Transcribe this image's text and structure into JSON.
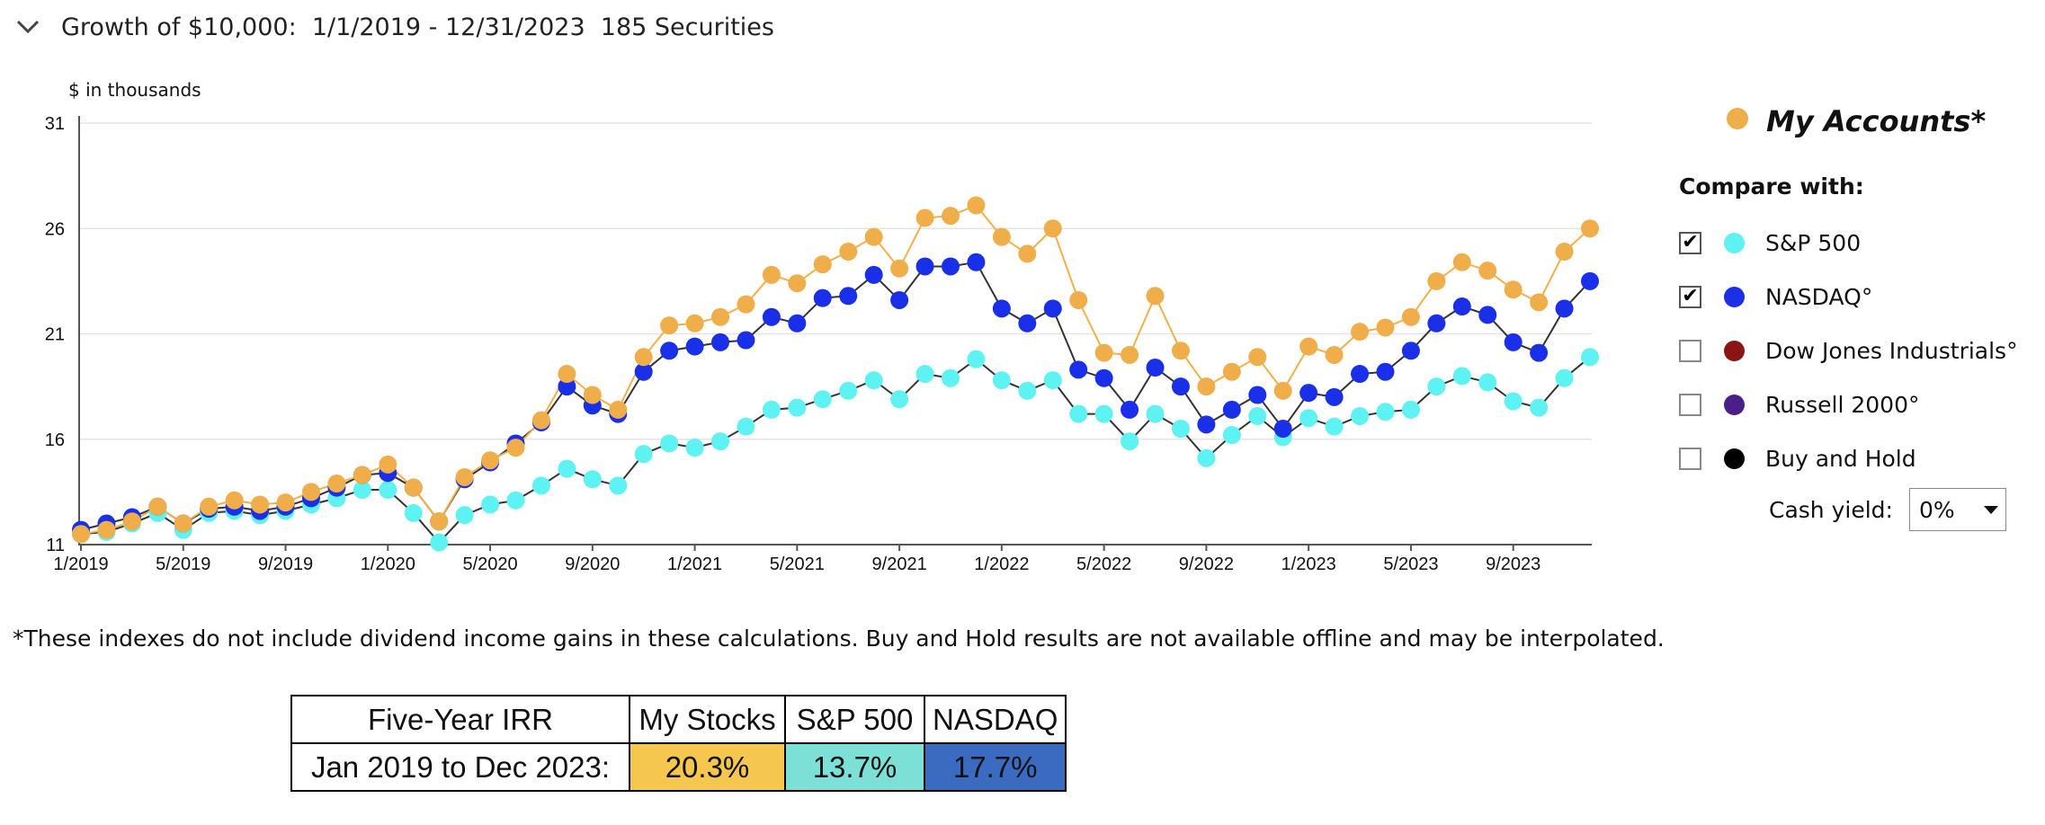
{
  "header": {
    "chevron_icon": "chevron-down-icon",
    "title": "Growth of $10,000:  1/1/2019 - 12/31/2023  185 Securities"
  },
  "chart_data": {
    "type": "line",
    "ylabel": "$ in thousands",
    "ylim": [
      11,
      31
    ],
    "yticks": [
      "11",
      "16",
      "21",
      "26",
      "31"
    ],
    "xticks": [
      "1/2019",
      "5/2019",
      "9/2019",
      "1/2020",
      "5/2020",
      "9/2020",
      "1/2021",
      "5/2021",
      "9/2021",
      "1/2022",
      "5/2022",
      "9/2022",
      "1/2023",
      "5/2023",
      "9/2023"
    ],
    "grid": "horizontal",
    "legend_position": "right",
    "x": [
      "1/2019",
      "2/2019",
      "3/2019",
      "4/2019",
      "5/2019",
      "6/2019",
      "7/2019",
      "8/2019",
      "9/2019",
      "10/2019",
      "11/2019",
      "12/2019",
      "1/2020",
      "2/2020",
      "3/2020",
      "4/2020",
      "5/2020",
      "6/2020",
      "7/2020",
      "8/2020",
      "9/2020",
      "10/2020",
      "11/2020",
      "12/2020",
      "1/2021",
      "2/2021",
      "3/2021",
      "4/2021",
      "5/2021",
      "6/2021",
      "7/2021",
      "8/2021",
      "9/2021",
      "10/2021",
      "11/2021",
      "12/2021",
      "1/2022",
      "2/2022",
      "3/2022",
      "4/2022",
      "5/2022",
      "6/2022",
      "7/2022",
      "8/2022",
      "9/2022",
      "10/2022",
      "11/2022",
      "12/2022",
      "1/2023",
      "2/2023",
      "3/2023",
      "4/2023",
      "5/2023",
      "6/2023",
      "7/2023",
      "8/2023",
      "9/2023",
      "10/2023",
      "11/2023",
      "12/2023"
    ],
    "series": [
      {
        "name": "S&P 500",
        "color": "#5ff2f2",
        "values": [
          11.5,
          11.6,
          12.0,
          12.5,
          11.7,
          12.5,
          12.6,
          12.4,
          12.6,
          12.9,
          13.2,
          13.6,
          13.6,
          12.5,
          11.1,
          12.4,
          12.9,
          13.1,
          13.8,
          14.6,
          14.1,
          13.8,
          15.3,
          15.8,
          15.6,
          15.9,
          16.6,
          17.4,
          17.5,
          17.9,
          18.3,
          18.8,
          17.9,
          19.1,
          18.9,
          19.8,
          18.8,
          18.3,
          18.8,
          17.2,
          17.2,
          15.9,
          17.2,
          16.5,
          15.1,
          16.2,
          17.1,
          16.1,
          17.0,
          16.6,
          17.1,
          17.3,
          17.4,
          18.5,
          19.0,
          18.7,
          17.8,
          17.5,
          18.9,
          19.9
        ]
      },
      {
        "name": "NASDAQ°",
        "color": "#1a2fe8",
        "values": [
          11.7,
          12.0,
          12.3,
          12.8,
          12.0,
          12.7,
          12.8,
          12.6,
          12.8,
          13.2,
          13.7,
          14.3,
          14.4,
          13.7,
          12.1,
          14.1,
          14.9,
          15.8,
          16.8,
          18.5,
          17.6,
          17.2,
          19.2,
          20.2,
          20.4,
          20.6,
          20.7,
          21.8,
          21.5,
          22.7,
          22.8,
          23.8,
          22.6,
          24.2,
          24.2,
          24.4,
          22.2,
          21.5,
          22.2,
          19.3,
          18.9,
          17.4,
          19.4,
          18.5,
          16.7,
          17.4,
          18.1,
          16.5,
          18.2,
          18.0,
          19.1,
          19.2,
          20.2,
          21.5,
          22.3,
          21.9,
          20.6,
          20.1,
          22.2,
          23.5
        ]
      },
      {
        "name": "My Accounts*",
        "color": "#f0ae4b",
        "values": [
          11.5,
          11.7,
          12.1,
          12.8,
          12.0,
          12.8,
          13.1,
          12.9,
          13.0,
          13.5,
          13.9,
          14.3,
          14.8,
          13.7,
          12.1,
          14.2,
          15.0,
          15.6,
          16.9,
          19.1,
          18.1,
          17.4,
          19.9,
          21.4,
          21.5,
          21.8,
          22.4,
          23.8,
          23.4,
          24.3,
          24.9,
          25.6,
          24.1,
          26.5,
          26.6,
          27.1,
          25.6,
          24.8,
          26.0,
          22.6,
          20.1,
          20.0,
          22.8,
          20.2,
          18.5,
          19.2,
          19.9,
          18.3,
          20.4,
          20.0,
          21.1,
          21.3,
          21.8,
          23.5,
          24.4,
          24.0,
          23.1,
          22.5,
          24.9,
          26.0
        ]
      }
    ]
  },
  "legend": {
    "main": {
      "label": "My Accounts*",
      "color": "#f0ae4b"
    },
    "compare_title": "Compare with:",
    "items": [
      {
        "label": "S&P 500",
        "color": "#5ff2f2",
        "checked": true
      },
      {
        "label": "NASDAQ°",
        "color": "#1a2fe8",
        "checked": true
      },
      {
        "label": "Dow Jones Industrials°",
        "color": "#8b1414",
        "checked": false
      },
      {
        "label": "Russell 2000°",
        "color": "#4a1f8a",
        "checked": false
      },
      {
        "label": "Buy and Hold",
        "color": "#000000",
        "checked": false
      }
    ],
    "cash_yield_label": "Cash yield:",
    "cash_yield_value": "0%"
  },
  "note": "*These indexes do not include dividend income gains in these calculations. Buy and Hold results are not available offline and may be interpolated.",
  "irr_table": {
    "header": [
      "Five-Year IRR",
      "My Stocks",
      "S&P 500",
      "NASDAQ"
    ],
    "row": [
      "Jan 2019 to Dec 2023:",
      "20.3%",
      "13.7%",
      "17.7%"
    ]
  }
}
